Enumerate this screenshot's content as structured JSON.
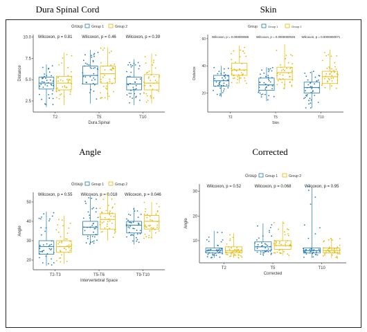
{
  "titles": {
    "dura": "Dura Spinal Cord",
    "skin": "Skin",
    "angle": "Angle",
    "corrected": "Corrected"
  },
  "legend": {
    "title": "Group",
    "group1": "Group 1",
    "group2": "Group 2"
  },
  "colors": {
    "group1": "#1f77b4",
    "group2": "#e6b800"
  },
  "chart_data": [
    {
      "id": "dura",
      "type": "box",
      "xlabel": "Dura.Spinal",
      "ylabel": "Distance",
      "categories": [
        "T2",
        "T5",
        "T10"
      ],
      "yticks": [
        "2.5",
        "5.0",
        "7.5",
        "10.0"
      ],
      "ylim": [
        1.2,
        10.3
      ],
      "pvalues": [
        "Wilcoxon, p = 0.81",
        "Wilcoxon, p = 0.46",
        "Wilcoxon, p = 0.39"
      ],
      "series": [
        {
          "name": "Group 1",
          "stats": [
            [
              1.8,
              3.9,
              4.6,
              5.3,
              6.8
            ],
            [
              2.2,
              4.5,
              5.5,
              6.6,
              8.5
            ],
            [
              2.0,
              3.8,
              4.5,
              5.3,
              7.4
            ]
          ]
        },
        {
          "name": "Group 2",
          "stats": [
            [
              2.0,
              3.8,
              4.6,
              5.4,
              8.2
            ],
            [
              2.6,
              4.6,
              5.7,
              6.6,
              8.8
            ],
            [
              2.2,
              3.8,
              4.6,
              5.6,
              8.1
            ]
          ]
        }
      ]
    },
    {
      "id": "skin",
      "type": "box",
      "xlabel": "Skin",
      "ylabel": "Distance",
      "categories": [
        "T2",
        "T5",
        "T10"
      ],
      "yticks": [
        "20",
        "40",
        "60"
      ],
      "ylim": [
        6,
        63
      ],
      "pvalues": [
        "Wilcoxon, p = 0.000000065",
        "Wilcoxon, p = 0.0000000028",
        "Wilcoxon, p = 0.0000000071"
      ],
      "series": [
        {
          "name": "Group 1",
          "stats": [
            [
              17,
              25,
              29,
              33,
              40
            ],
            [
              14,
              22,
              26,
              31,
              39
            ],
            [
              9,
              20,
              24,
              28,
              36
            ]
          ]
        },
        {
          "name": "Group 2",
          "stats": [
            [
              27,
              33,
              37,
              42,
              55
            ],
            [
              23,
              30,
              35,
              39,
              56
            ],
            [
              22,
              27,
              32,
              36,
              52
            ]
          ]
        }
      ]
    },
    {
      "id": "angle",
      "type": "box",
      "xlabel": "Intervertebral Space",
      "ylabel": "Angle",
      "categories": [
        "T2-T3",
        "T5-T6",
        "T9-T10"
      ],
      "yticks": [
        "20",
        "30",
        "40",
        "50"
      ],
      "ylim": [
        15,
        55
      ],
      "pvalues": [
        "Wilcoxon, p = 0.55",
        "Wilcoxon, p = 0.018",
        "Wilcoxon, p = 0.046"
      ],
      "series": [
        {
          "name": "Group 1",
          "stats": [
            [
              17,
              23,
              27,
              30,
              45
            ],
            [
              28,
              33,
              37,
              40,
              53
            ],
            [
              28,
              34,
              38,
              40,
              47
            ]
          ]
        },
        {
          "name": "Group 2",
          "stats": [
            [
              18,
              24,
              27,
              30,
              43
            ],
            [
              30,
              36,
              41,
              44,
              55
            ],
            [
              31,
              36,
              40,
              43,
              50
            ]
          ]
        }
      ]
    },
    {
      "id": "corrected",
      "type": "box",
      "xlabel": "Corrected",
      "ylabel": "Angle",
      "categories": [
        "T2",
        "T5",
        "T10"
      ],
      "yticks": [
        "10",
        "20",
        "30"
      ],
      "ylim": [
        1,
        33
      ],
      "pvalues": [
        "Wilcoxon, p = 0.52",
        "Wilcoxon, p = 0.068",
        "Wilcoxon, p = 0.95"
      ],
      "series": [
        {
          "name": "Group 1",
          "stats": [
            [
              3,
              5,
              6,
              7,
              14
            ],
            [
              4,
              6,
              7.5,
              9.5,
              17
            ],
            [
              3,
              5,
              6,
              7,
              32
            ]
          ]
        },
        {
          "name": "Group 2",
          "stats": [
            [
              3,
              5,
              6,
              7.5,
              13
            ],
            [
              4,
              6.5,
              8,
              10,
              18
            ],
            [
              3,
              5,
              6,
              7,
              11
            ]
          ]
        }
      ]
    }
  ]
}
